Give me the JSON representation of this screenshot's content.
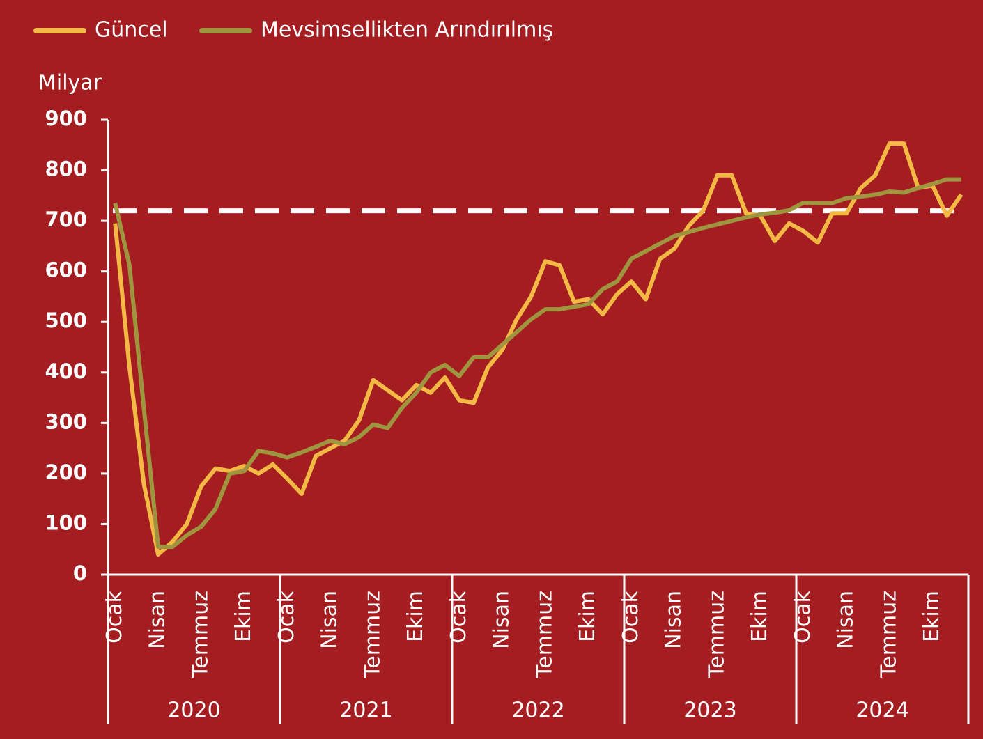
{
  "chart_data": {
    "type": "line",
    "y_label": "Milyar",
    "categories": [
      "Ocak",
      null,
      null,
      "Nisan",
      null,
      null,
      "Temmuz",
      null,
      null,
      "Ekim",
      null,
      null,
      "Ocak",
      null,
      null,
      "Nisan",
      null,
      null,
      "Temmuz",
      null,
      null,
      "Ekim",
      null,
      null,
      "Ocak",
      null,
      null,
      "Nisan",
      null,
      null,
      "Temmuz",
      null,
      null,
      "Ekim",
      null,
      null,
      "Ocak",
      null,
      null,
      "Nisan",
      null,
      null,
      "Temmuz",
      null,
      null,
      "Ekim",
      null,
      null,
      "Ocak",
      null,
      null,
      "Nisan",
      null,
      null,
      "Temmuz",
      null,
      null,
      "Ekim",
      null,
      null
    ],
    "years": [
      "2020",
      "2021",
      "2022",
      "2023",
      "2024"
    ],
    "series": [
      {
        "name": "Güncel",
        "color": "#f4b844",
        "values": [
          695,
          410,
          180,
          40,
          65,
          100,
          175,
          210,
          205,
          215,
          200,
          218,
          190,
          160,
          235,
          250,
          265,
          305,
          385,
          365,
          345,
          375,
          360,
          390,
          345,
          340,
          410,
          445,
          505,
          550,
          620,
          612,
          540,
          545,
          515,
          555,
          580,
          545,
          625,
          645,
          690,
          720,
          790,
          790,
          715,
          710,
          660,
          695,
          680,
          657,
          715,
          715,
          765,
          790,
          853,
          853,
          765,
          770,
          710,
          752
        ]
      },
      {
        "name": "Mevsimsellikten Arındırılmış",
        "color": "#a0953f",
        "values": [
          735,
          612,
          330,
          55,
          55,
          78,
          95,
          130,
          200,
          205,
          245,
          240,
          232,
          242,
          253,
          265,
          258,
          272,
          297,
          290,
          330,
          360,
          400,
          415,
          393,
          430,
          430,
          455,
          480,
          505,
          525,
          525,
          530,
          535,
          565,
          580,
          625,
          640,
          655,
          670,
          678,
          686,
          693,
          700,
          707,
          713,
          716,
          721,
          736,
          735,
          735,
          745,
          748,
          752,
          758,
          756,
          765,
          773,
          782,
          782
        ]
      }
    ],
    "reference_line": 720,
    "ylim": [
      0,
      900
    ],
    "yticks": [
      0,
      100,
      200,
      300,
      400,
      500,
      600,
      700,
      800,
      900
    ]
  }
}
